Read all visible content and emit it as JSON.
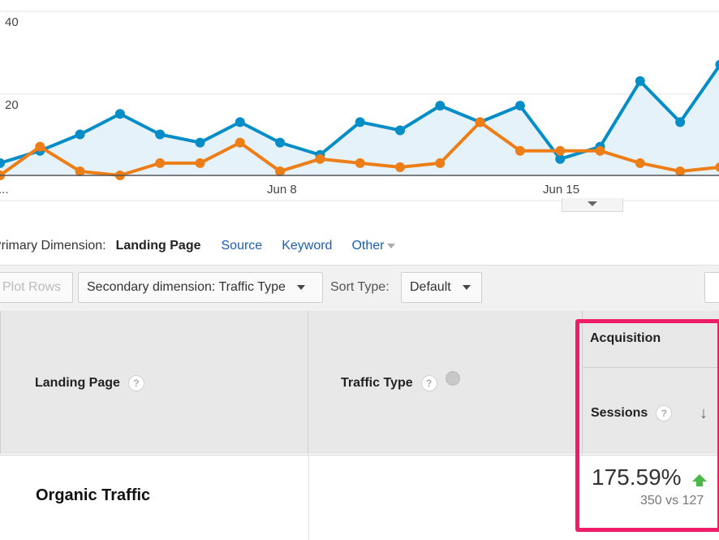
{
  "chart_data": {
    "type": "line",
    "y_ticks": [
      "40",
      "20"
    ],
    "x_ticks": [
      "...",
      "Jun 8",
      "Jun 15"
    ],
    "ylim": [
      0,
      40
    ],
    "grid": true,
    "series": [
      {
        "color": "#058dc7",
        "values": [
          3,
          6,
          10,
          15,
          10,
          8,
          13,
          8,
          5,
          13,
          11,
          17,
          13,
          17,
          4,
          7,
          23,
          13,
          27
        ]
      },
      {
        "color": "#ed7e17",
        "values": [
          0,
          7,
          1,
          0,
          3,
          3,
          8,
          1,
          4,
          3,
          2,
          3,
          13,
          6,
          6,
          6,
          3,
          1,
          2
        ]
      }
    ]
  },
  "dimensions": {
    "label": "Primary Dimension:",
    "active": "Landing Page",
    "source": "Source",
    "keyword": "Keyword",
    "other": "Other"
  },
  "toolbar": {
    "plot_rows": "Plot Rows",
    "secondary": "Secondary dimension: Traffic Type",
    "sort_label": "Sort Type:",
    "sort_value": "Default"
  },
  "table": {
    "col_landing": "Landing Page",
    "col_traffic": "Traffic Type",
    "group": "Acquisition",
    "col_sessions": "Sessions",
    "help": "?",
    "row_name": "Organic Traffic",
    "pct": "175.59%",
    "compare": "350 vs 127"
  }
}
